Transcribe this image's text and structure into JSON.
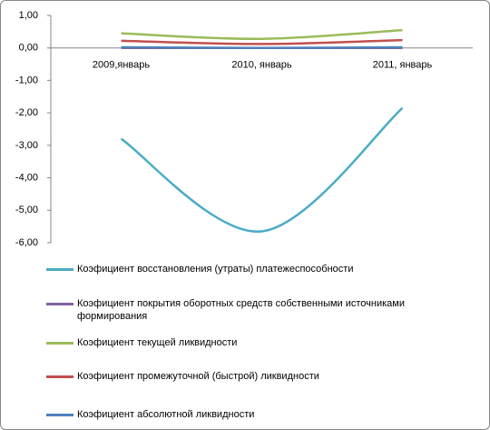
{
  "chart_data": {
    "type": "line",
    "categories": [
      "2009,январь",
      "2010, январь",
      "2011, январь"
    ],
    "series": [
      {
        "name": "Коэфициент восстановления (утраты) платежеспособности",
        "color": "#4bacc6",
        "values": [
          -2.8,
          -5.65,
          -1.85
        ]
      },
      {
        "name": "Коэфициент покрытия оборотных средств собственными источниками формирования",
        "color": "#8064a2",
        "values": [
          0,
          0,
          0
        ]
      },
      {
        "name": "Коэфициент текущей ликвидности",
        "color": "#9bbb59",
        "values": [
          0.45,
          0.28,
          0.55
        ]
      },
      {
        "name": "Коэфициент промежуточной (быстрой) ликвидности",
        "color": "#c0504d",
        "values": [
          0.22,
          0.12,
          0.24
        ]
      },
      {
        "name": "Коэфициент абсолютной ликвидности",
        "color": "#4f81bd",
        "values": [
          0.02,
          0,
          0.02
        ]
      }
    ],
    "ylim": [
      -6,
      1
    ],
    "yticks": [
      {
        "value": 1,
        "label": "1,00"
      },
      {
        "value": 0,
        "label": "0,00"
      },
      {
        "value": -1,
        "label": "-1,00"
      },
      {
        "value": -2,
        "label": "-2,00"
      },
      {
        "value": -3,
        "label": "-3,00"
      },
      {
        "value": -4,
        "label": "-4,00"
      },
      {
        "value": -5,
        "label": "-5,00"
      },
      {
        "value": -6,
        "label": "-6,00"
      }
    ],
    "negative_tick_color": "#ff0000",
    "smooth": true
  }
}
